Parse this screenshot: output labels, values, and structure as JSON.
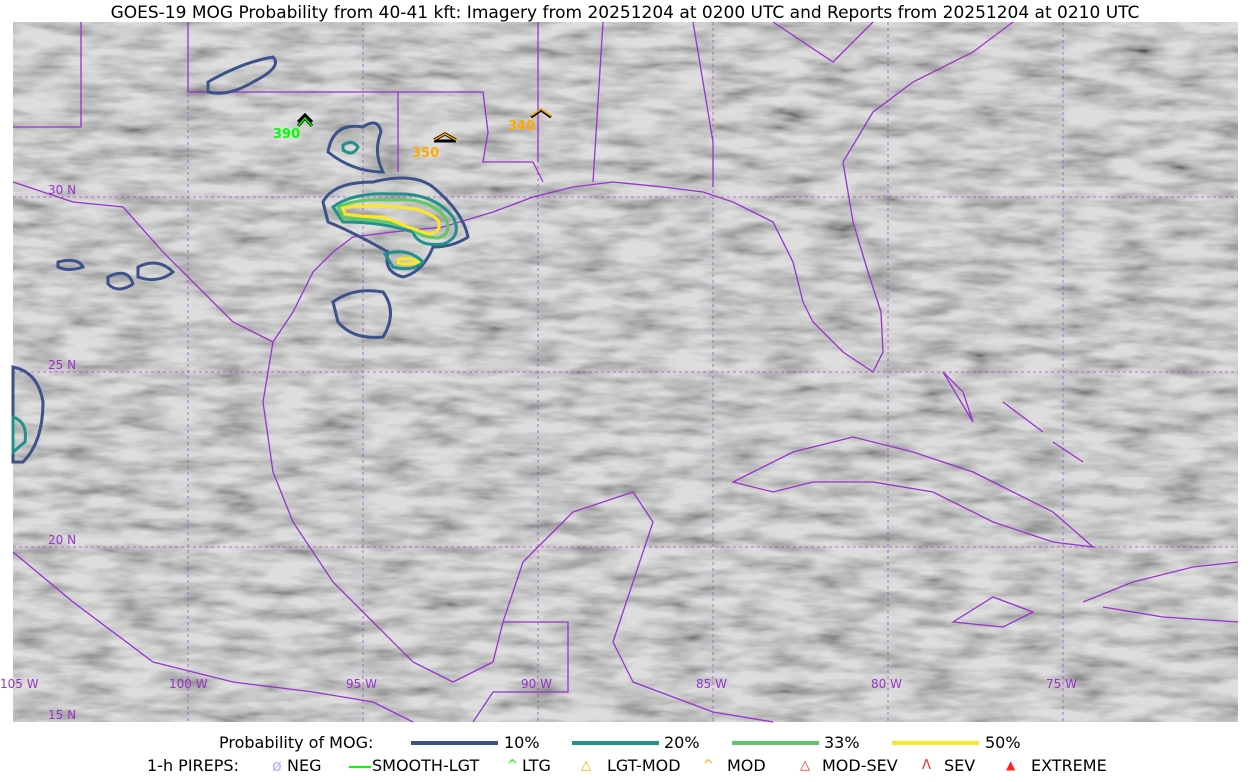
{
  "title": "GOES-19 MOG Probability from 40-41 kft: Imagery from 20251204 at 0200 UTC and Reports from 20251204 at 0210 UTC",
  "map": {
    "lat_labels": [
      "30 N",
      "25 N",
      "20 N",
      "15 N"
    ],
    "lon_labels": [
      "105 W",
      "100 W",
      "95 W",
      "90 W",
      "85 W",
      "80 W",
      "75 W"
    ],
    "boundary_color": "#9933cc",
    "pireps": [
      {
        "altitude": "390",
        "type": "LTG",
        "color": "#00ff00"
      },
      {
        "altitude": "350",
        "type": "LGT-MOD",
        "color": "#ffaa00"
      },
      {
        "altitude": "340",
        "type": "MOD",
        "color": "#ffaa00"
      }
    ]
  },
  "legend": {
    "probability_label": "Probability of MOG:",
    "probability_levels": [
      {
        "label": "10%",
        "color": "#3b528b"
      },
      {
        "label": "20%",
        "color": "#21918c"
      },
      {
        "label": "33%",
        "color": "#5ec962"
      },
      {
        "label": "50%",
        "color": "#fde725"
      }
    ],
    "pireps_label": "1-h PIREPS:",
    "pirep_types": [
      {
        "label": "NEG",
        "color": "#b0b0ff",
        "icon": "neg-icon"
      },
      {
        "label": "SMOOTH-LGT",
        "color": "#00ff00",
        "icon": "line-icon"
      },
      {
        "label": "LTG",
        "color": "#00ff00",
        "icon": "caret-icon"
      },
      {
        "label": "LGT-MOD",
        "color": "#ffaa00",
        "icon": "caret-bar-icon"
      },
      {
        "label": "MOD",
        "color": "#ffaa00",
        "icon": "caret-icon"
      },
      {
        "label": "MOD-SEV",
        "color": "#ff2020",
        "icon": "double-caret-bar-icon"
      },
      {
        "label": "SEV",
        "color": "#ff2020",
        "icon": "double-caret-icon"
      },
      {
        "label": "EXTREME",
        "color": "#ff2020",
        "icon": "triangle-icon"
      }
    ]
  }
}
